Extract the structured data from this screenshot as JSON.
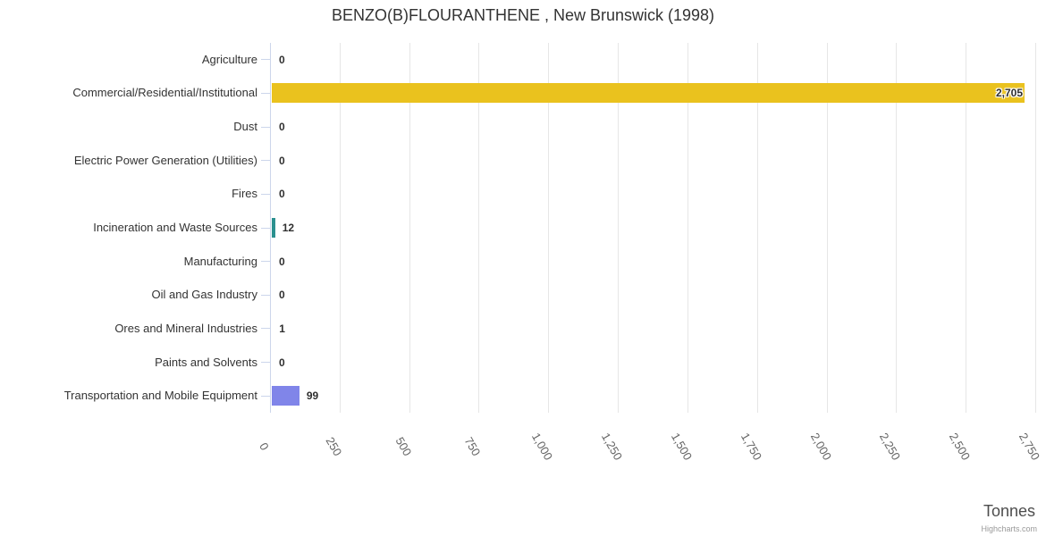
{
  "chart_data": {
    "type": "bar",
    "orientation": "horizontal",
    "title": "BENZO(B)FLOURANTHENE , New Brunswick (1998)",
    "categories": [
      "Agriculture",
      "Commercial/Residential/Institutional",
      "Dust",
      "Electric Power Generation (Utilities)",
      "Fires",
      "Incineration and Waste Sources",
      "Manufacturing",
      "Oil and Gas Industry",
      "Ores and Mineral Industries",
      "Paints and Solvents",
      "Transportation and Mobile Equipment"
    ],
    "values": [
      0,
      2705,
      0,
      0,
      0,
      12,
      0,
      0,
      1,
      0,
      99
    ],
    "value_labels": [
      "0",
      "2,705",
      "0",
      "0",
      "0",
      "12",
      "0",
      "0",
      "1",
      "0",
      "99"
    ],
    "bar_colors": [
      null,
      "#eac21e",
      null,
      null,
      null,
      "#2b908f",
      null,
      null,
      null,
      null,
      "#8085e9"
    ],
    "xlabel": "Tonnes",
    "ylabel": "",
    "xlim": [
      0,
      2750
    ],
    "tick_step": 250,
    "xticks": [
      "0",
      "250",
      "500",
      "750",
      "1,000",
      "1,250",
      "1,500",
      "1,750",
      "2,000",
      "2,250",
      "2,500",
      "2,750"
    ],
    "grid": true,
    "legend": false
  },
  "credits": {
    "label": "Highcharts.com"
  },
  "colors": {
    "grid": "#e6e6e6",
    "axis_line": "#ccd6eb",
    "category_tick": "#ccd6eb",
    "title_text": "#333333",
    "category_label_text": "#333333",
    "tick_label_text": "#666666",
    "axis_title_text": "#4d4d4d",
    "credits_text": "#999999",
    "data_label_text": "#2f2f2f",
    "background": "#ffffff"
  }
}
